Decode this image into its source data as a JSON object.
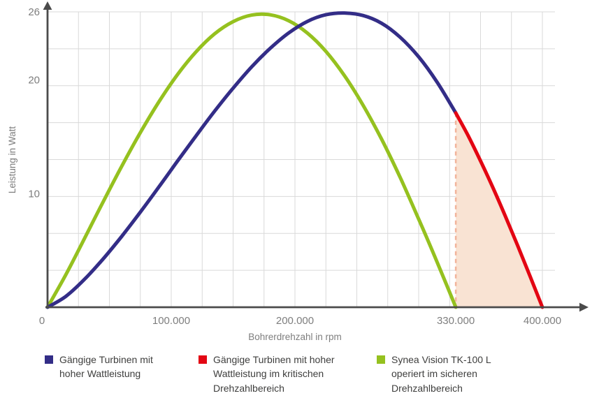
{
  "colors": {
    "blue": "#332d87",
    "red": "#e30613",
    "green": "#95c11f",
    "area_fill": "#f9e3d3",
    "dashed_line": "#f2b49b",
    "grid": "#d9d9d9",
    "axis": "#4b4b4b",
    "tick_text": "#7e7e7e",
    "legend_text": "#3e3e3d"
  },
  "chart_data": {
    "type": "line",
    "title": "",
    "xlabel": "Bohrerdrehzahl in rpm",
    "ylabel": "Leistung in Watt",
    "xlim": [
      0,
      400000
    ],
    "ylim": [
      0,
      26
    ],
    "grid": {
      "x_step": 25000,
      "y_divisions": 8
    },
    "critical_threshold_rpm": 330000,
    "x_ticks": [
      {
        "value": 0,
        "label": "0"
      },
      {
        "value": 100000,
        "label": "100.000"
      },
      {
        "value": 200000,
        "label": "200.000"
      },
      {
        "value": 330000,
        "label": "330.000"
      },
      {
        "value": 400000,
        "label": "400.000"
      }
    ],
    "y_ticks": [
      {
        "value": 10,
        "label": "10"
      },
      {
        "value": 20,
        "label": "20"
      },
      {
        "value": 26,
        "label": "26"
      }
    ],
    "series": [
      {
        "name": "synea-vision-tk100l",
        "color_key": "green",
        "points": [
          [
            0,
            0
          ],
          [
            15000,
            2.9
          ],
          [
            30000,
            6.08
          ],
          [
            45000,
            9.29
          ],
          [
            60000,
            12.41
          ],
          [
            75000,
            15.37
          ],
          [
            90000,
            18.08
          ],
          [
            105000,
            20.47
          ],
          [
            120000,
            22.48
          ],
          [
            135000,
            24.06
          ],
          [
            150000,
            25.14
          ],
          [
            165000,
            25.72
          ],
          [
            180000,
            25.74
          ],
          [
            195000,
            25.22
          ],
          [
            210000,
            24.14
          ],
          [
            225000,
            22.52
          ],
          [
            240000,
            20.39
          ],
          [
            255000,
            17.79
          ],
          [
            270000,
            14.8
          ],
          [
            285000,
            11.43
          ],
          [
            300000,
            7.76
          ],
          [
            315000,
            3.95
          ],
          [
            330000,
            0
          ]
        ]
      },
      {
        "name": "conventional-turbine-safe",
        "color_key": "blue",
        "points": [
          [
            0,
            0
          ],
          [
            15000,
            0.97
          ],
          [
            30000,
            2.47
          ],
          [
            45000,
            4.26
          ],
          [
            60000,
            6.24
          ],
          [
            75000,
            8.37
          ],
          [
            90000,
            10.59
          ],
          [
            105000,
            12.85
          ],
          [
            120000,
            15.08
          ],
          [
            135000,
            17.25
          ],
          [
            150000,
            19.28
          ],
          [
            165000,
            21.16
          ],
          [
            180000,
            22.79
          ],
          [
            195000,
            24.15
          ],
          [
            210000,
            25.16
          ],
          [
            225000,
            25.75
          ],
          [
            240000,
            25.9
          ],
          [
            255000,
            25.68
          ],
          [
            270000,
            25.0
          ],
          [
            285000,
            23.77
          ],
          [
            300000,
            22.04
          ],
          [
            315000,
            19.8
          ],
          [
            330000,
            17.1
          ]
        ]
      },
      {
        "name": "conventional-turbine-critical",
        "color_key": "red",
        "area": true,
        "points": [
          [
            330000,
            17.1
          ],
          [
            340000,
            15.1
          ],
          [
            350000,
            12.88
          ],
          [
            360000,
            10.53
          ],
          [
            370000,
            8.03
          ],
          [
            380000,
            5.43
          ],
          [
            390000,
            2.74
          ],
          [
            400000,
            0
          ]
        ]
      }
    ]
  },
  "legend": {
    "items": [
      {
        "label": "Gängige Turbinen mit hoher Wattleistung",
        "color_key": "blue"
      },
      {
        "label": "Gängige Turbinen mit hoher Wattleistung im kritischen Drehzahlbereich",
        "color_key": "red"
      },
      {
        "label": "Synea Vision TK-100 L operiert im sicheren Drehzahlbereich",
        "color_key": "green"
      }
    ]
  }
}
